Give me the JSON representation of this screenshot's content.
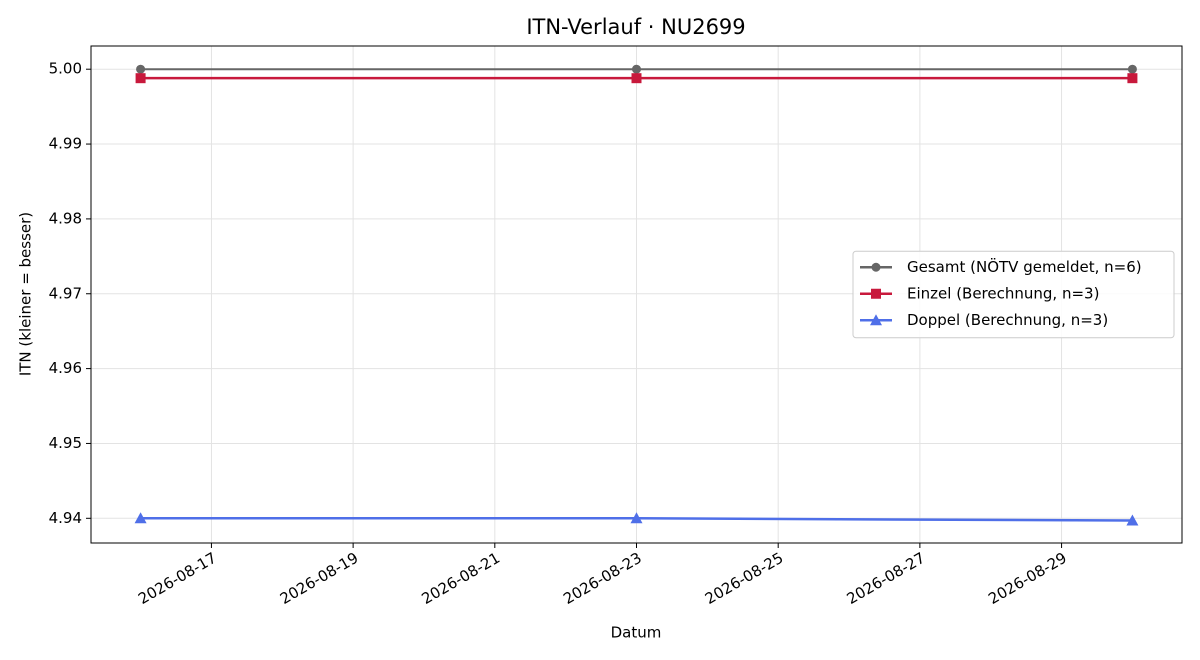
{
  "chart_data": {
    "type": "line",
    "title": "ITN-Verlauf · NU2699",
    "xlabel": "Datum",
    "ylabel": "ITN  (kleiner = besser)",
    "x": [
      "2026-08-16",
      "2026-08-23",
      "2026-08-30"
    ],
    "series": [
      {
        "name": "Gesamt (NÖTV gemeldet, n=6)",
        "color": "#666666",
        "marker": "circle",
        "values": [
          5.0,
          5.0,
          5.0
        ]
      },
      {
        "name": "Einzel (Berechnung, n=3)",
        "color": "#c8193c",
        "marker": "square",
        "values": [
          4.9988,
          4.9988,
          4.9988
        ]
      },
      {
        "name": "Doppel (Berechnung, n=3)",
        "color": "#4f6fe8",
        "marker": "triangle",
        "values": [
          4.94,
          4.94,
          4.9397
        ]
      }
    ],
    "xlim": [
      "2026-08-15T07:12:00Z",
      "2026-08-30T16:48:00Z"
    ],
    "xticks": [
      "2026-08-17",
      "2026-08-19",
      "2026-08-21",
      "2026-08-23",
      "2026-08-25",
      "2026-08-27",
      "2026-08-29"
    ],
    "ylim": [
      4.9367,
      5.0031
    ],
    "yticks": [
      4.94,
      4.95,
      4.96,
      4.97,
      4.98,
      4.99,
      {
        "value": 5.0,
        "label": "5.00"
      }
    ],
    "grid": true,
    "legend": "center right"
  }
}
